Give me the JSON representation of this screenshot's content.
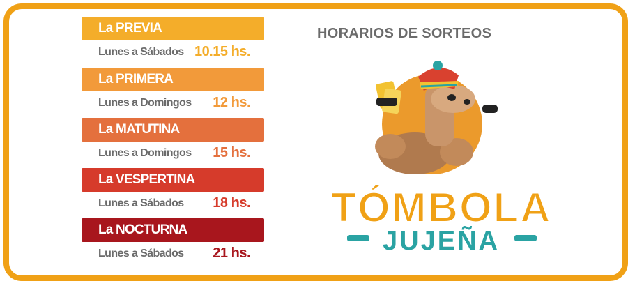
{
  "heading": "HORARIOS DE SORTEOS",
  "draws": [
    {
      "name": "La PREVIA",
      "days": "Lunes a Sábados",
      "time": "10.15 hs.",
      "color": "#f4ad2a"
    },
    {
      "name": "La PRIMERA",
      "days": "Lunes a Domingos",
      "time": "12 hs.",
      "color": "#f29a3a"
    },
    {
      "name": "La MATUTINA",
      "days": "Lunes a Domingos",
      "time": "15 hs.",
      "color": "#e4703d"
    },
    {
      "name": "La VESPERTINA",
      "days": "Lunes a Sábados",
      "time": "18 hs.",
      "color": "#d63b2b"
    },
    {
      "name": "La NOCTURNA",
      "days": "Lunes a Sábados",
      "time": "21 hs.",
      "color": "#a8161d"
    }
  ],
  "logo": {
    "line1": "TÓMBOLA",
    "line2": "JUJEÑA",
    "mascot": "llama-mascot-icon",
    "colors": {
      "orange": "#f0a116",
      "teal": "#2aa3a3",
      "sun": "#eb9a2c"
    }
  },
  "colors": {
    "frame": "#f0a116",
    "gray_text": "#6b6b6b"
  }
}
